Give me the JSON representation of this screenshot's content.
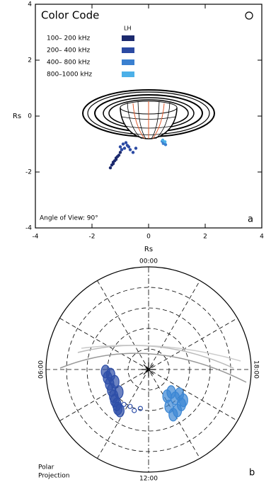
{
  "chart_data": [
    {
      "type": "scatter",
      "title": "Color Code",
      "legend_title": "LH",
      "annotation": "Angle of View: 90°",
      "panel_label": "a",
      "xlabel": "Rs",
      "ylabel": "Rs",
      "xlim": [
        -4,
        4
      ],
      "ylim": [
        -4,
        4
      ],
      "xticks": [
        -4,
        -2,
        0,
        2,
        4
      ],
      "yticks": [
        -4,
        -2,
        0,
        2,
        4
      ],
      "legend": "upper left",
      "series": [
        {
          "name": "100– 200 kHz",
          "color": "#1c2a6e",
          "x": [
            -1.35,
            -1.3,
            -1.25,
            -1.2,
            -1.15,
            -1.1,
            -1.05,
            -1.0,
            -0.95,
            -1.25,
            -1.15
          ],
          "y": [
            -1.85,
            -1.75,
            -1.65,
            -1.6,
            -1.5,
            -1.45,
            -1.4,
            -1.3,
            -1.2,
            -1.7,
            -1.55
          ]
        },
        {
          "name": "200– 400 kHz",
          "color": "#2b4aa3",
          "x": [
            -1.0,
            -0.95,
            -0.9,
            -0.85,
            -0.8,
            -0.75,
            -0.7,
            -0.65,
            -0.55,
            -0.45
          ],
          "y": [
            -1.1,
            -1.2,
            -1.0,
            -1.15,
            -0.95,
            -1.05,
            -1.1,
            -1.2,
            -1.3,
            -1.15
          ]
        },
        {
          "name": "400– 800 kHz",
          "color": "#3a80d0",
          "x": [
            0.48,
            0.52,
            0.56,
            0.6
          ],
          "y": [
            -0.9,
            -0.98,
            -0.94,
            -1.02
          ]
        },
        {
          "name": "800–1000 kHz",
          "color": "#4cb0e8",
          "x": [
            0.5,
            0.58
          ],
          "y": [
            -0.86,
            -0.92
          ]
        }
      ]
    },
    {
      "type": "polar",
      "panel_label": "b",
      "time_labels": [
        "00:00",
        "06:00",
        "12:00",
        "18:00"
      ],
      "label_lines": [
        "Polar",
        "Projection"
      ],
      "series": [
        {
          "color": "#2d4ea8",
          "x": [
            -0.42,
            -0.4,
            -0.38,
            -0.36,
            -0.34,
            -0.33,
            -0.31,
            -0.3,
            -0.28,
            -0.37,
            -0.33,
            -0.29
          ],
          "y": [
            0.02,
            0.08,
            0.14,
            0.2,
            0.26,
            0.3,
            0.34,
            0.38,
            0.4,
            0.05,
            0.12,
            0.22
          ]
        },
        {
          "color": "#2d4ea8",
          "x": [
            -0.24,
            -0.18,
            -0.14,
            -0.08
          ],
          "y": [
            0.34,
            0.36,
            0.4,
            0.38
          ]
        },
        {
          "color": "#3a86d4",
          "x": [
            0.18,
            0.22,
            0.26,
            0.3,
            0.34,
            0.2,
            0.28,
            0.32,
            0.24
          ],
          "y": [
            0.26,
            0.22,
            0.28,
            0.24,
            0.3,
            0.36,
            0.4,
            0.34,
            0.44
          ]
        }
      ]
    }
  ]
}
